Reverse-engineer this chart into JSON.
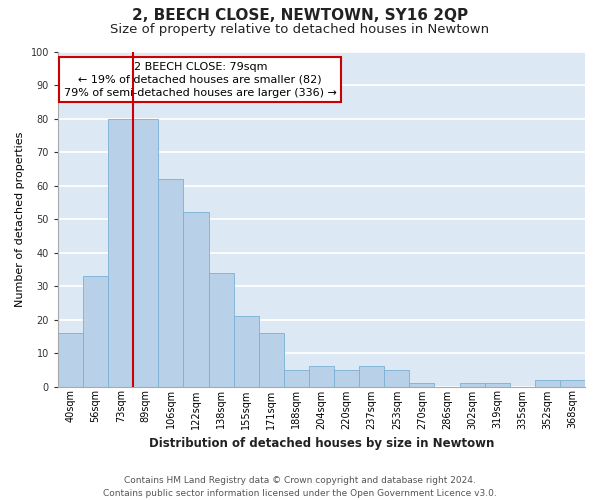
{
  "title": "2, BEECH CLOSE, NEWTOWN, SY16 2QP",
  "subtitle": "Size of property relative to detached houses in Newtown",
  "xlabel": "Distribution of detached houses by size in Newtown",
  "ylabel": "Number of detached properties",
  "bar_labels": [
    "40sqm",
    "56sqm",
    "73sqm",
    "89sqm",
    "106sqm",
    "122sqm",
    "138sqm",
    "155sqm",
    "171sqm",
    "188sqm",
    "204sqm",
    "220sqm",
    "237sqm",
    "253sqm",
    "270sqm",
    "286sqm",
    "302sqm",
    "319sqm",
    "335sqm",
    "352sqm",
    "368sqm"
  ],
  "bar_values": [
    16,
    33,
    80,
    80,
    62,
    52,
    34,
    21,
    16,
    5,
    6,
    5,
    6,
    5,
    1,
    0,
    1,
    1,
    0,
    2,
    2
  ],
  "bar_color": "#b8d0e8",
  "bar_edge_color": "#7aafd4",
  "bg_color": "#dce9f5",
  "grid_color": "#ffffff",
  "vline_x": 2.5,
  "vline_color": "#cc0000",
  "annotation_text": "2 BEECH CLOSE: 79sqm\n← 19% of detached houses are smaller (82)\n79% of semi-detached houses are larger (336) →",
  "annotation_box_color": "#ffffff",
  "annotation_box_edge": "#cc0000",
  "ylim": [
    0,
    100
  ],
  "footer": "Contains HM Land Registry data © Crown copyright and database right 2024.\nContains public sector information licensed under the Open Government Licence v3.0.",
  "title_fontsize": 11,
  "subtitle_fontsize": 9.5,
  "xlabel_fontsize": 8.5,
  "ylabel_fontsize": 8,
  "tick_fontsize": 7,
  "annotation_fontsize": 8,
  "footer_fontsize": 6.5
}
